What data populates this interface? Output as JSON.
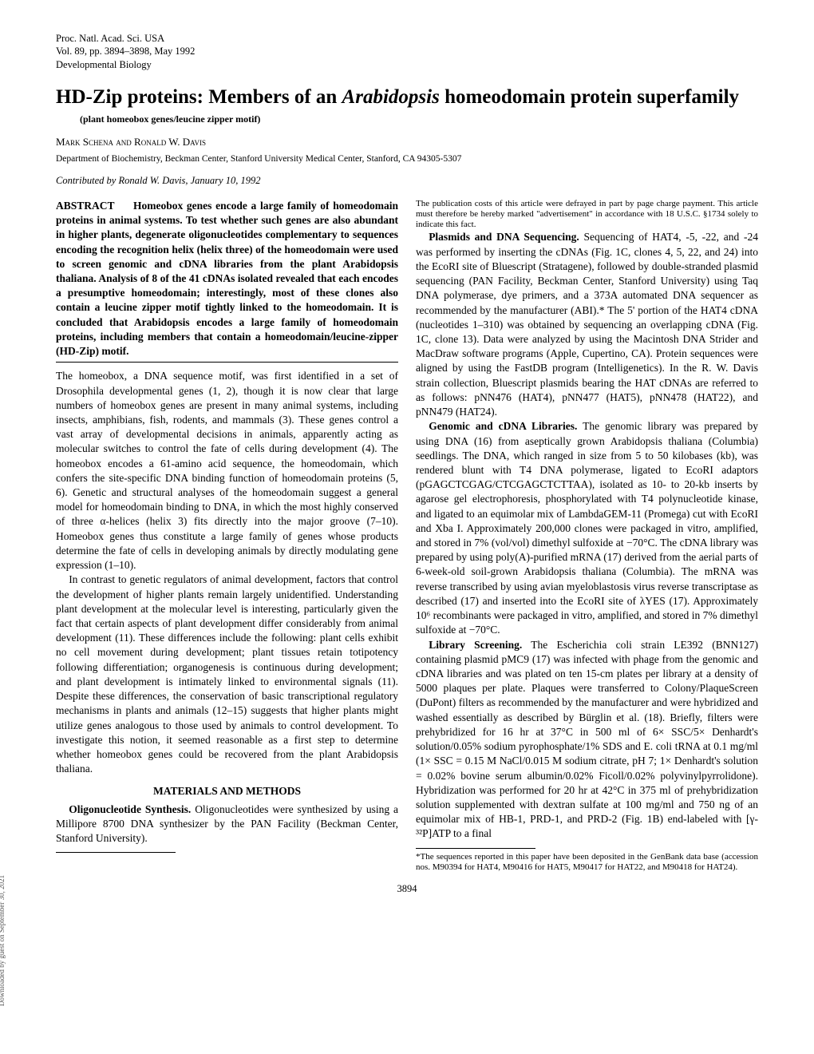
{
  "header": {
    "line1": "Proc. Natl. Acad. Sci. USA",
    "line2": "Vol. 89, pp. 3894–3898, May 1992",
    "line3": "Developmental Biology"
  },
  "title_plain1": "HD-Zip proteins: Members of an ",
  "title_italic": "Arabidopsis",
  "title_plain2": " homeodomain protein superfamily",
  "subtitle": "(plant homeobox genes/leucine zipper motif)",
  "authors": "Mark Schena and Ronald W. Davis",
  "affiliation": "Department of Biochemistry, Beckman Center, Stanford University Medical Center, Stanford, CA 94305-5307",
  "contributed": "Contributed by Ronald W. Davis, January 10, 1992",
  "abstract_label": "ABSTRACT",
  "abstract": "Homeobox genes encode a large family of homeodomain proteins in animal systems. To test whether such genes are also abundant in higher plants, degenerate oligonucleotides complementary to sequences encoding the recognition helix (helix three) of the homeodomain were used to screen genomic and cDNA libraries from the plant Arabidopsis thaliana. Analysis of 8 of the 41 cDNAs isolated revealed that each encodes a presumptive homeodomain; interestingly, most of these clones also contain a leucine zipper motif tightly linked to the homeodomain. It is concluded that Arabidopsis encodes a large family of homeodomain proteins, including members that contain a homeodomain/leucine-zipper (HD-Zip) motif.",
  "intro_p1": "The homeobox, a DNA sequence motif, was first identified in a set of Drosophila developmental genes (1, 2), though it is now clear that large numbers of homeobox genes are present in many animal systems, including insects, amphibians, fish, rodents, and mammals (3). These genes control a vast array of developmental decisions in animals, apparently acting as molecular switches to control the fate of cells during development (4). The homeobox encodes a 61-amino acid sequence, the homeodomain, which confers the site-specific DNA binding function of homeodomain proteins (5, 6). Genetic and structural analyses of the homeodomain suggest a general model for homeodomain binding to DNA, in which the most highly conserved of three α-helices (helix 3) fits directly into the major groove (7–10). Homeobox genes thus constitute a large family of genes whose products determine the fate of cells in developing animals by directly modulating gene expression (1–10).",
  "intro_p2": "In contrast to genetic regulators of animal development, factors that control the development of higher plants remain largely unidentified. Understanding plant development at the molecular level is interesting, particularly given the fact that certain aspects of plant development differ considerably from animal development (11). These differences include the following: plant cells exhibit no cell movement during development; plant tissues retain totipotency following differentiation; organogenesis is continuous during development; and plant development is intimately linked to environmental signals (11). Despite these differences, the conservation of basic transcriptional regulatory mechanisms in plants and animals (12–15) suggests that higher plants might utilize genes analogous to those used by animals to control development. To investigate this notion, it seemed reasonable as a first step to determine whether homeobox genes could be recovered from the plant Arabidopsis thaliana.",
  "materials_heading": "MATERIALS AND METHODS",
  "m_oligo_label": "Oligonucleotide Synthesis.",
  "m_oligo": " Oligonucleotides were synthesized by using a Millipore 8700 DNA synthesizer by the PAN Facility (Beckman Center, Stanford University).",
  "m_plasmid_label": "Plasmids and DNA Sequencing.",
  "m_plasmid": " Sequencing of HAT4, -5, -22, and -24 was performed by inserting the cDNAs (Fig. 1C, clones 4, 5, 22, and 24) into the EcoRI site of Bluescript (Stratagene), followed by double-stranded plasmid sequencing (PAN Facility, Beckman Center, Stanford University) using Taq DNA polymerase, dye primers, and a 373A automated DNA sequencer as recommended by the manufacturer (ABI).* The 5' portion of the HAT4 cDNA (nucleotides 1–310) was obtained by sequencing an overlapping cDNA (Fig. 1C, clone 13). Data were analyzed by using the Macintosh DNA Strider and MacDraw software programs (Apple, Cupertino, CA). Protein sequences were aligned by using the FastDB program (Intelligenetics). In the R. W. Davis strain collection, Bluescript plasmids bearing the HAT cDNAs are referred to as follows: pNN476 (HAT4), pNN477 (HAT5), pNN478 (HAT22), and pNN479 (HAT24).",
  "m_genomic_label": "Genomic and cDNA Libraries.",
  "m_genomic": " The genomic library was prepared by using DNA (16) from aseptically grown Arabidopsis thaliana (Columbia) seedlings. The DNA, which ranged in size from 5 to 50 kilobases (kb), was rendered blunt with T4 DNA polymerase, ligated to EcoRI adaptors (pGAGCTCGAG/CTCGAGCTCTTAA), isolated as 10- to 20-kb inserts by agarose gel electrophoresis, phosphorylated with T4 polynucleotide kinase, and ligated to an equimolar mix of LambdaGEM-11 (Promega) cut with EcoRI and Xba I. Approximately 200,000 clones were packaged in vitro, amplified, and stored in 7% (vol/vol) dimethyl sulfoxide at −70°C. The cDNA library was prepared by using poly(A)-purified mRNA (17) derived from the aerial parts of 6-week-old soil-grown Arabidopsis thaliana (Columbia). The mRNA was reverse transcribed by using avian myeloblastosis virus reverse transcriptase as described (17) and inserted into the EcoRI site of λYES (17). Approximately 10⁶ recombinants were packaged in vitro, amplified, and stored in 7% dimethyl sulfoxide at −70°C.",
  "m_library_label": "Library Screening.",
  "m_library": " The Escherichia coli strain LE392 (BNN127) containing plasmid pMC9 (17) was infected with phage from the genomic and cDNA libraries and was plated on ten 15-cm plates per library at a density of 5000 plaques per plate. Plaques were transferred to Colony/PlaqueScreen (DuPont) filters as recommended by the manufacturer and were hybridized and washed essentially as described by Bürglin et al. (18). Briefly, filters were prehybridized for 16 hr at 37°C in 500 ml of 6× SSC/5× Denhardt's solution/0.05% sodium pyrophosphate/1% SDS and E. coli tRNA at 0.1 mg/ml (1× SSC = 0.15 M NaCl/0.015 M sodium citrate, pH 7; 1× Denhardt's solution = 0.02% bovine serum albumin/0.02% Ficoll/0.02% polyvinylpyrrolidone). Hybridization was performed for 20 hr at 42°C in 375 ml of prehybridization solution supplemented with dextran sulfate at 100 mg/ml and 750 ng of an equimolar mix of HB-1, PRD-1, and PRD-2 (Fig. 1B) end-labeled with [γ-³²P]ATP to a final",
  "footnote_left": "The publication costs of this article were defrayed in part by page charge payment. This article must therefore be hereby marked \"advertisement\" in accordance with 18 U.S.C. §1734 solely to indicate this fact.",
  "footnote_right": "*The sequences reported in this paper have been deposited in the GenBank data base (accession nos. M90394 for HAT4, M90416 for HAT5, M90417 for HAT22, and M90418 for HAT24).",
  "pagenum": "3894",
  "side": "Downloaded by guest on September 30, 2021"
}
